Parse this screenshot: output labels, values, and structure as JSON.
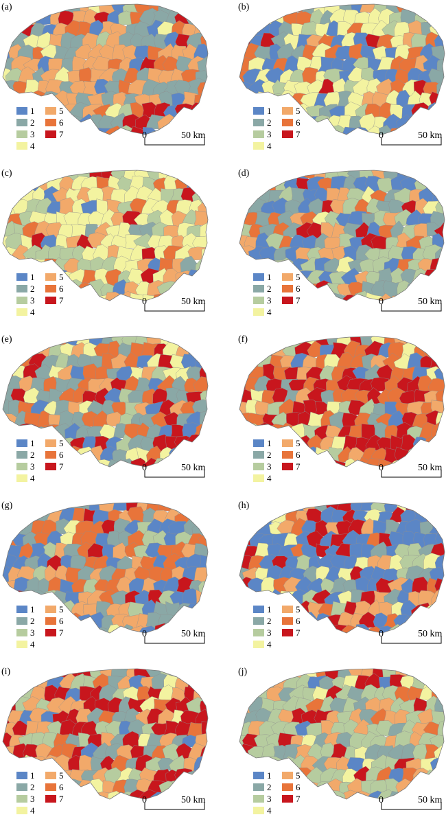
{
  "panels": [
    {
      "label": "(a)",
      "weights": [
        2,
        5,
        1,
        1,
        5,
        3,
        1
      ]
    },
    {
      "label": "(b)",
      "weights": [
        4,
        2,
        2,
        5,
        1,
        3,
        1
      ]
    },
    {
      "label": "(c)",
      "weights": [
        1,
        1,
        3,
        6,
        4,
        1,
        1
      ]
    },
    {
      "label": "(d)",
      "weights": [
        5,
        4,
        4,
        1,
        2,
        2,
        1
      ]
    },
    {
      "label": "(e)",
      "weights": [
        2,
        5,
        1,
        2,
        2,
        4,
        2
      ]
    },
    {
      "label": "(f)",
      "weights": [
        1,
        1,
        1,
        2,
        2,
        6,
        5
      ]
    },
    {
      "label": "(g)",
      "weights": [
        5,
        3,
        2,
        1,
        4,
        3,
        1
      ]
    },
    {
      "label": "(h)",
      "weights": [
        6,
        1,
        1,
        2,
        2,
        1,
        3
      ]
    },
    {
      "label": "(i)",
      "weights": [
        1,
        3,
        3,
        1,
        3,
        1,
        6
      ]
    },
    {
      "label": "(j)",
      "weights": [
        1,
        2,
        6,
        1,
        4,
        1,
        2
      ]
    }
  ],
  "legend": {
    "classes": [
      {
        "label": "1",
        "color": "#5b86c6"
      },
      {
        "label": "2",
        "color": "#8aa8a6"
      },
      {
        "label": "3",
        "color": "#b6cc9f"
      },
      {
        "label": "4",
        "color": "#f3f3a0"
      },
      {
        "label": "5",
        "color": "#f2a96a"
      },
      {
        "label": "6",
        "color": "#e8743a"
      },
      {
        "label": "7",
        "color": "#c8161d"
      }
    ]
  },
  "scale_bar": {
    "zero_label": "0",
    "distance_label": "50 km"
  }
}
